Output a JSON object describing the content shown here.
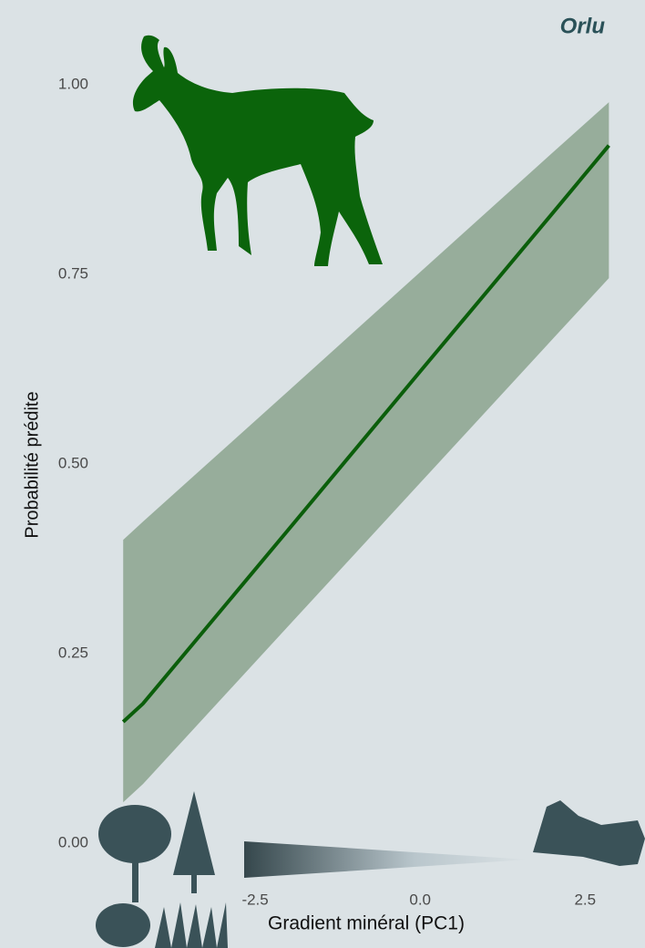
{
  "chart_data": {
    "type": "line",
    "title": "Orlu",
    "x_label": "Gradient minéral (PC1)",
    "y_label": "Probabilité prédite",
    "x": [
      -4.5,
      -4.2,
      -2,
      0,
      2,
      2.86
    ],
    "values": [
      0.16,
      0.184,
      0.413,
      0.622,
      0.83,
      0.92
    ],
    "lower": [
      0.054,
      0.078,
      0.286,
      0.475,
      0.664,
      0.745
    ],
    "upper": [
      0.4,
      0.424,
      0.596,
      0.753,
      0.91,
      0.977
    ],
    "color": "#0b5e0b",
    "band_color": "#97ad9b",
    "xlim": [
      -5,
      3.2
    ],
    "ylim": [
      -0.05,
      1.05
    ],
    "xticks": [
      {
        "value": -2.5,
        "label": "-2.5"
      },
      {
        "value": 0,
        "label": "0.0"
      },
      {
        "value": 2.5,
        "label": "2.5"
      }
    ],
    "yticks": [
      {
        "value": 0,
        "label": "0.00"
      },
      {
        "value": 0.25,
        "label": "0.25"
      },
      {
        "value": 0.5,
        "label": "0.50"
      },
      {
        "value": 0.75,
        "label": "0.75"
      },
      {
        "value": 1,
        "label": "1.00"
      }
    ]
  }
}
